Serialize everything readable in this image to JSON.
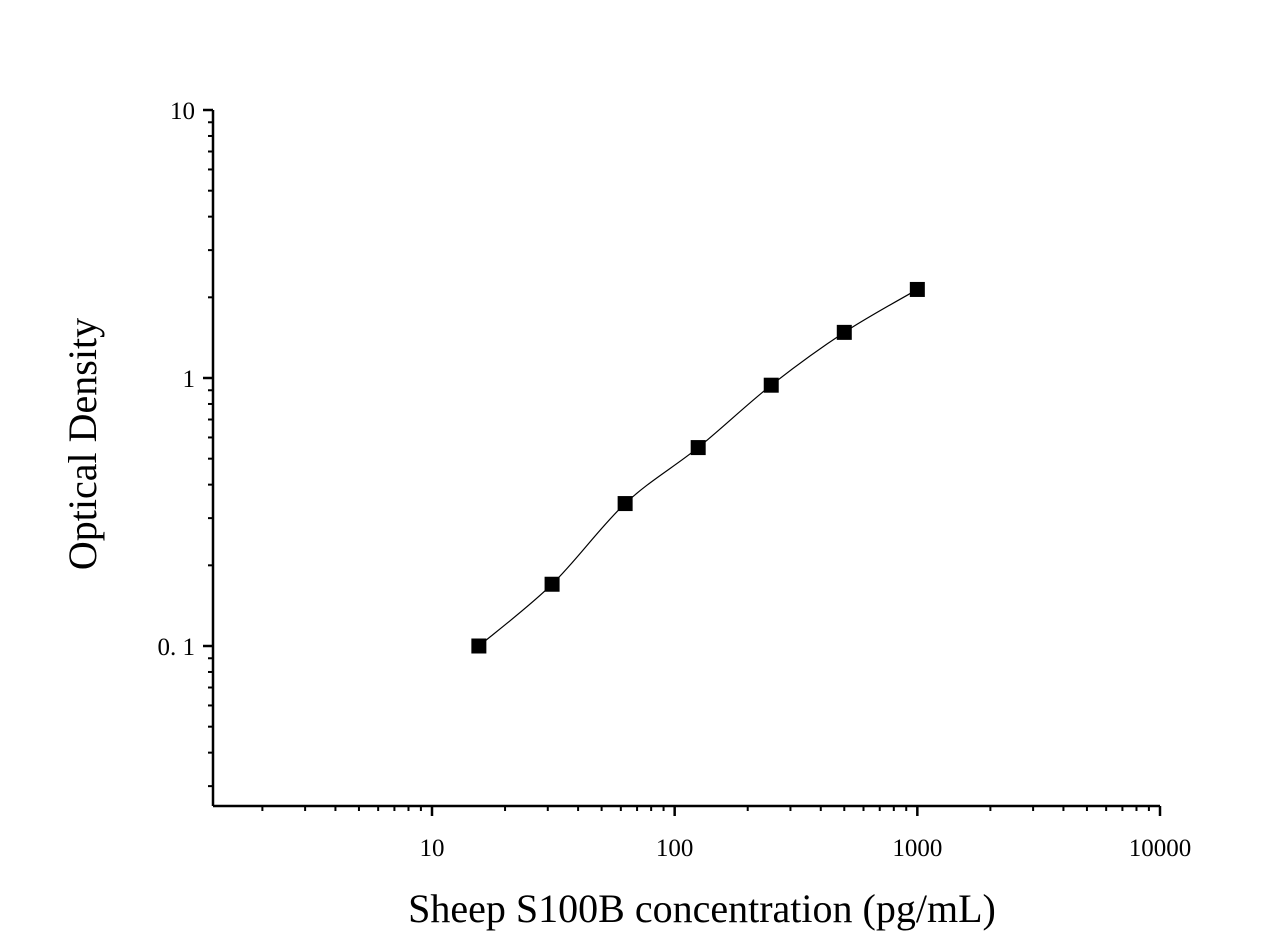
{
  "chart_data": {
    "type": "scatter",
    "title": "",
    "xlabel": "Sheep S100B concentration (pg/mL)",
    "ylabel": "Optical Density",
    "x_scale": "log",
    "y_scale": "log",
    "xlim": [
      1.2,
      10000
    ],
    "ylim": [
      0.025,
      10
    ],
    "x_ticks": [
      10,
      100,
      1000,
      10000
    ],
    "x_tick_labels": [
      "10",
      "100",
      "1000",
      "10000"
    ],
    "y_ticks": [
      0.1,
      1,
      10
    ],
    "y_tick_labels": [
      "0. 1",
      "1",
      "10"
    ],
    "grid": false,
    "legend": "none",
    "marker": "square",
    "marker_color": "#000000",
    "line_color": "#000000",
    "series": [
      {
        "x": [
          15.6,
          31.25,
          62.5,
          125,
          250,
          500,
          1000
        ],
        "y": [
          0.1,
          0.17,
          0.34,
          0.55,
          0.94,
          1.48,
          2.14
        ]
      }
    ]
  }
}
